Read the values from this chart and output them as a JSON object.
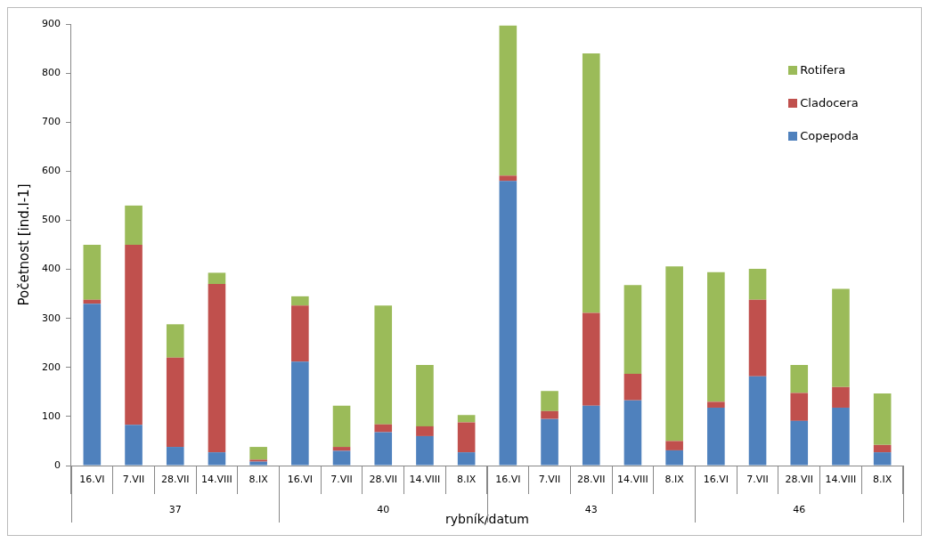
{
  "chart_data": {
    "type": "bar",
    "stacked": true,
    "ylabel": "Početnost [ind.l-1]",
    "xlabel": "rybník/datum",
    "categories": [
      "16.VI",
      "7.VII",
      "28.VII",
      "14.VIII",
      "8.IX",
      "16.VI",
      "7.VII",
      "28.VII",
      "14.VIII",
      "8.IX",
      "16.VI",
      "7.VII",
      "28.VII",
      "14.VIII",
      "8.IX",
      "16.VI",
      "7.VII",
      "28.VII",
      "14.VIII",
      "8.IX"
    ],
    "annotations": [
      "37",
      "40",
      "43",
      "46"
    ],
    "series": [
      {
        "name": "Copepoda",
        "color": "#4f81bd",
        "values": [
          330,
          83,
          38,
          27,
          8,
          212,
          30,
          68,
          60,
          27,
          580,
          95,
          122,
          133,
          31,
          118,
          182,
          91,
          118,
          27
        ]
      },
      {
        "name": "Cladocera",
        "color": "#c0504d",
        "values": [
          8,
          367,
          182,
          343,
          4,
          114,
          8,
          16,
          20,
          61,
          11,
          16,
          189,
          54,
          19,
          12,
          156,
          57,
          42,
          15
        ]
      },
      {
        "name": "Rotifera",
        "color": "#9bbb59",
        "values": [
          112,
          80,
          68,
          23,
          26,
          19,
          84,
          242,
          125,
          15,
          306,
          41,
          529,
          181,
          356,
          264,
          63,
          57,
          200,
          105
        ]
      }
    ],
    "ylim": [
      0,
      900
    ],
    "yticks": [
      0,
      100,
      200,
      300,
      400,
      500,
      600,
      700,
      800,
      900
    ],
    "grid": false,
    "legend": "top right"
  }
}
